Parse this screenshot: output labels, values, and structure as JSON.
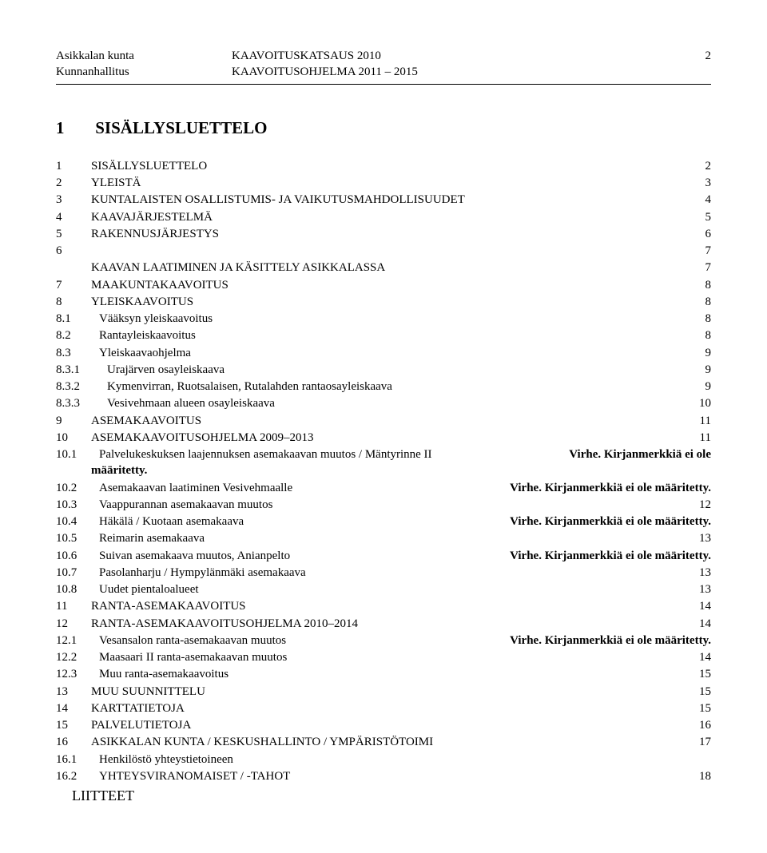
{
  "header": {
    "left1": "Asikkalan kunta",
    "left2": "Kunnanhallitus",
    "center1": "KAAVOITUSKATSAUS 2010",
    "center2": "KAAVOITUSOHJELMA 2011 – 2015",
    "page": "2"
  },
  "title_num": "1",
  "title_text": "SISÄLLYSLUETTELO",
  "err": "Virhe. Kirjanmerkkiä ei ole määritetty.",
  "err_prefix": "Virhe. Kirjanmerkkiä ei ole",
  "err_suffix": "määritetty.",
  "toc": [
    {
      "n": "1",
      "t": "SISÄLLYSLUETTELO",
      "p": "2",
      "lvl": 0
    },
    {
      "n": "2",
      "t": "YLEISTÄ",
      "p": "3",
      "lvl": 0
    },
    {
      "n": "3",
      "t": "KUNTALAISTEN OSALLISTUMIS- JA VAIKUTUSMAHDOLLISUUDET",
      "p": "4",
      "lvl": 0
    },
    {
      "n": "4",
      "t": "KAAVAJÄRJESTELMÄ",
      "p": "5",
      "lvl": 0
    },
    {
      "n": "5",
      "t": "RAKENNUSJÄRJESTYS",
      "p": "6",
      "lvl": 0
    },
    {
      "n": "6",
      "t": "",
      "p": "7",
      "lvl": 0
    },
    {
      "n": "",
      "t": "KAAVAN LAATIMINEN JA KÄSITTELY ASIKKALASSA",
      "p": "7",
      "lvl": 0,
      "nonum": true
    },
    {
      "n": "7",
      "t": "MAAKUNTAKAAVOITUS",
      "p": "8",
      "lvl": 0
    },
    {
      "n": "8",
      "t": "YLEISKAAVOITUS",
      "p": "8",
      "lvl": 0
    },
    {
      "n": "8.1",
      "t": "Vääksyn yleiskaavoitus",
      "p": "8",
      "lvl": 1
    },
    {
      "n": "8.2",
      "t": "Rantayleiskaavoitus",
      "p": "8",
      "lvl": 1
    },
    {
      "n": "8.3",
      "t": "Yleiskaavaohjelma",
      "p": "9",
      "lvl": 1
    },
    {
      "n": "8.3.1",
      "t": "Urajärven osayleiskaava",
      "p": "9",
      "lvl": 2
    },
    {
      "n": "8.3.2",
      "t": "Kymenvirran, Ruotsalaisen, Rutalahden rantaosayleiskaava",
      "p": "9",
      "lvl": 2
    },
    {
      "n": "8.3.3",
      "t": "Vesivehmaan alueen osayleiskaava",
      "p": "10",
      "lvl": 2
    },
    {
      "n": "9",
      "t": "ASEMAKAAVOITUS",
      "p": "11",
      "lvl": 0
    },
    {
      "n": "10",
      "t": "ASEMAKAAVOITUSOHJELMA 2009–2013",
      "p": "11",
      "lvl": 0
    },
    {
      "n": "10.1",
      "t": "Palvelukeskuksen laajennuksen asemakaavan muutos / Mäntyrinne II",
      "p": "ERR_WRAP",
      "lvl": 1
    },
    {
      "n": "10.2",
      "t": "Asemakaavan laatiminen Vesivehmaalle",
      "p": "ERR",
      "lvl": 1
    },
    {
      "n": "10.3",
      "t": "Vaappurannan asemakaavan muutos",
      "p": "12",
      "lvl": 1
    },
    {
      "n": "10.4",
      "t": "Häkälä / Kuotaan asemakaava",
      "p": "ERR",
      "lvl": 1
    },
    {
      "n": "10.5",
      "t": "Reimarin asemakaava",
      "p": "13",
      "lvl": 1
    },
    {
      "n": "10.6",
      "t": "Suivan asemakaava muutos, Anianpelto",
      "p": "ERR",
      "lvl": 1
    },
    {
      "n": "10.7",
      "t": "Pasolanharju / Hympylänmäki asemakaava",
      "p": "13",
      "lvl": 1
    },
    {
      "n": "10.8",
      "t": "Uudet pientaloalueet",
      "p": "13",
      "lvl": 1
    },
    {
      "n": "11",
      "t": "RANTA-ASEMAKAAVOITUS",
      "p": "14",
      "lvl": 0
    },
    {
      "n": "12",
      "t": "RANTA-ASEMAKAAVOITUSOHJELMA 2010–2014",
      "p": "14",
      "lvl": 0
    },
    {
      "n": "12.1",
      "t": "Vesansalon ranta-asemakaavan muutos",
      "p": "ERR",
      "lvl": 1
    },
    {
      "n": "12.2",
      "t": "Maasaari II ranta-asemakaavan muutos",
      "p": "14",
      "lvl": 1
    },
    {
      "n": "12.3",
      "t": "Muu ranta-asemakaavoitus",
      "p": "15",
      "lvl": 1
    },
    {
      "n": "13",
      "t": "MUU SUUNNITTELU",
      "p": "15",
      "lvl": 0
    },
    {
      "n": "14",
      "t": "KARTTATIETOJA",
      "p": "15",
      "lvl": 0
    },
    {
      "n": "15",
      "t": "PALVELUTIETOJA",
      "p": "16",
      "lvl": 0
    },
    {
      "n": "16",
      "t": "ASIKKALAN KUNTA / KESKUSHALLINTO / YMPÄRISTÖTOIMI",
      "p": "17",
      "lvl": 0
    },
    {
      "n": "16.1",
      "t": "Henkilöstö yhteystietoineen",
      "p": "",
      "lvl": 1,
      "nopage": true
    },
    {
      "n": "16.2",
      "t": "YHTEYSVIRANOMAISET / -TAHOT",
      "p": "18",
      "lvl": 1
    }
  ],
  "liitteet": "LIITTEET"
}
